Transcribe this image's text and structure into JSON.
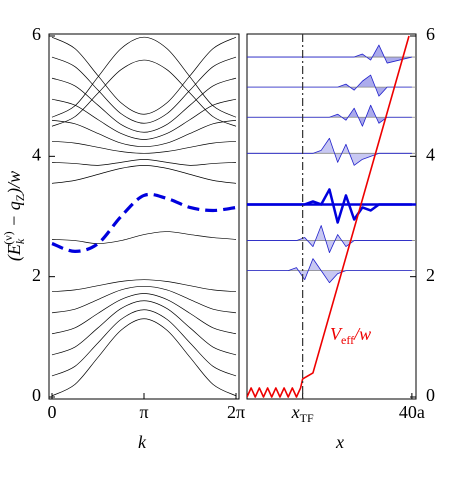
{
  "chart_data": [
    {
      "type": "line",
      "x_label": "k",
      "y_label_parts": [
        "(E",
        "k",
        "(ν)",
        " − q",
        "Z",
        ")/w"
      ],
      "xlim": [
        0,
        6.2832
      ],
      "xticks": [
        {
          "value": 0,
          "label": "0"
        },
        {
          "value": 3.1416,
          "label": "π"
        },
        {
          "value": 6.2832,
          "label": "2π"
        }
      ],
      "ylim": [
        0,
        6
      ],
      "yticks": [
        0,
        2,
        4,
        6
      ],
      "x": [
        0,
        0.7854,
        1.5708,
        2.3562,
        3.1416,
        3.927,
        4.7124,
        5.4978,
        6.2832
      ],
      "series": [
        {
          "color": "#000000",
          "values": [
            0.02,
            0.21,
            0.66,
            1.11,
            1.3,
            1.11,
            0.66,
            0.21,
            0.02
          ]
        },
        {
          "color": "#000000",
          "values": [
            0.35,
            0.51,
            0.9,
            1.29,
            1.45,
            1.29,
            0.9,
            0.51,
            0.35
          ]
        },
        {
          "color": "#000000",
          "values": [
            0.7,
            0.83,
            1.15,
            1.47,
            1.6,
            1.47,
            1.15,
            0.83,
            0.7
          ]
        },
        {
          "color": "#000000",
          "values": [
            1.05,
            1.15,
            1.39,
            1.62,
            1.72,
            1.62,
            1.39,
            1.15,
            1.05
          ]
        },
        {
          "color": "#000000",
          "values": [
            1.4,
            1.46,
            1.62,
            1.78,
            1.84,
            1.78,
            1.62,
            1.46,
            1.4
          ]
        },
        {
          "color": "#000000",
          "values": [
            1.75,
            1.78,
            1.85,
            1.92,
            1.95,
            1.92,
            1.85,
            1.78,
            1.75
          ]
        },
        {
          "color": "#000000",
          "values": [
            5.98,
            5.79,
            5.34,
            4.89,
            4.7,
            4.89,
            5.34,
            5.79,
            5.98
          ]
        },
        {
          "color": "#000000",
          "values": [
            5.65,
            5.49,
            5.1,
            4.71,
            4.55,
            4.71,
            5.1,
            5.49,
            5.65
          ]
        },
        {
          "color": "#000000",
          "values": [
            5.3,
            5.17,
            4.85,
            4.53,
            4.4,
            4.53,
            4.85,
            5.17,
            5.3
          ]
        },
        {
          "color": "#000000",
          "values": [
            4.95,
            4.85,
            4.61,
            4.38,
            4.28,
            4.38,
            4.61,
            4.85,
            4.95
          ]
        },
        {
          "color": "#000000",
          "values": [
            4.6,
            4.54,
            4.38,
            4.22,
            4.16,
            4.22,
            4.38,
            4.54,
            4.6
          ]
        },
        {
          "color": "#000000",
          "values": [
            4.25,
            4.22,
            4.15,
            4.08,
            4.05,
            4.08,
            4.15,
            4.22,
            4.25
          ]
        },
        {
          "color": "#000000",
          "values": [
            4.65,
            4.84,
            5.32,
            5.79,
            5.98,
            5.79,
            5.32,
            4.84,
            4.65
          ]
        },
        {
          "color": "#000000",
          "values": [
            4.5,
            4.66,
            5.05,
            5.44,
            5.6,
            5.44,
            5.05,
            4.66,
            4.5
          ]
        },
        {
          "color": "#000000",
          "values": [
            2.62,
            2.6,
            2.55,
            2.6,
            2.7,
            2.75,
            2.7,
            2.65,
            2.62
          ]
        },
        {
          "color": "#000000",
          "values": [
            3.55,
            3.6,
            3.7,
            3.8,
            3.85,
            3.8,
            3.7,
            3.6,
            3.55
          ]
        },
        {
          "color": "#000000",
          "values": [
            3.9,
            3.88,
            3.85,
            3.9,
            3.95,
            3.9,
            3.85,
            3.88,
            3.9
          ]
        },
        {
          "color": "#0000dd",
          "style": "dashed",
          "values": [
            2.55,
            2.42,
            2.55,
            3.0,
            3.35,
            3.3,
            3.15,
            3.1,
            3.15
          ]
        }
      ]
    },
    {
      "type": "line",
      "x_label": "x",
      "xlim": [
        0,
        41
      ],
      "xticks": [
        {
          "value": 13.5,
          "label": "x",
          "subscript": "TF"
        },
        {
          "value": 40,
          "label": "40a"
        }
      ],
      "ylim": [
        0,
        6
      ],
      "yticks": [
        0,
        2,
        4,
        6
      ],
      "vline": {
        "x": 13.5,
        "style": "dashdot"
      },
      "annotation_parts": [
        "V",
        "eff",
        "/w"
      ],
      "x": [
        0,
        10,
        12,
        14,
        16,
        18,
        20,
        22,
        24,
        26,
        28,
        30,
        32,
        34,
        40
      ],
      "series": [
        {
          "color": "#2222cc",
          "fill": "#8f8fe6",
          "level": 5.65,
          "values": [
            5.65,
            5.65,
            5.65,
            5.65,
            5.65,
            5.65,
            5.65,
            5.65,
            5.65,
            5.65,
            5.7,
            5.6,
            5.85,
            5.55,
            5.65
          ]
        },
        {
          "color": "#2222cc",
          "fill": "#8f8fe6",
          "level": 5.15,
          "values": [
            5.15,
            5.15,
            5.15,
            5.15,
            5.15,
            5.15,
            5.15,
            5.15,
            5.2,
            5.1,
            5.25,
            5.35,
            5.0,
            5.15,
            5.15
          ]
        },
        {
          "color": "#2222cc",
          "fill": "#8f8fe6",
          "level": 4.65,
          "values": [
            4.65,
            4.65,
            4.65,
            4.65,
            4.65,
            4.65,
            4.65,
            4.7,
            4.6,
            4.8,
            4.5,
            4.85,
            4.55,
            4.65,
            4.65
          ]
        },
        {
          "color": "#2222cc",
          "fill": "#b5b5ee",
          "level": 4.05,
          "values": [
            4.05,
            4.05,
            4.05,
            4.05,
            4.05,
            4.1,
            4.3,
            3.9,
            4.2,
            3.85,
            3.95,
            4.0,
            4.05,
            4.05,
            4.05
          ]
        },
        {
          "color": "#0000dd",
          "style": "thick",
          "level": 3.2,
          "values": [
            3.2,
            3.2,
            3.2,
            3.2,
            3.25,
            3.2,
            3.45,
            2.9,
            3.35,
            2.95,
            3.15,
            3.1,
            3.2,
            3.2,
            3.2
          ]
        },
        {
          "color": "#2222cc",
          "fill": "#b5b5ee",
          "level": 2.6,
          "values": [
            2.6,
            2.6,
            2.6,
            2.65,
            2.5,
            2.85,
            2.4,
            2.7,
            2.5,
            2.6,
            2.6,
            2.6,
            2.6,
            2.6,
            2.6
          ]
        },
        {
          "color": "#2222cc",
          "fill": "#b5b5ee",
          "level": 2.1,
          "values": [
            2.1,
            2.1,
            2.15,
            1.95,
            2.3,
            2.1,
            1.9,
            2.05,
            2.1,
            2.1,
            2.1,
            2.1,
            2.1,
            2.1,
            2.1
          ]
        },
        {
          "color": "#ee0000",
          "style": "potential",
          "x": [
            0,
            1,
            2,
            3,
            4,
            5,
            6,
            7,
            8,
            9,
            10,
            11,
            12,
            13,
            13.5,
            16,
            39.3
          ],
          "values": [
            0,
            0.15,
            0,
            0.15,
            0,
            0.15,
            0,
            0.15,
            0,
            0.15,
            0,
            0.15,
            0,
            0.15,
            0.3,
            0.4,
            6
          ]
        }
      ]
    }
  ]
}
